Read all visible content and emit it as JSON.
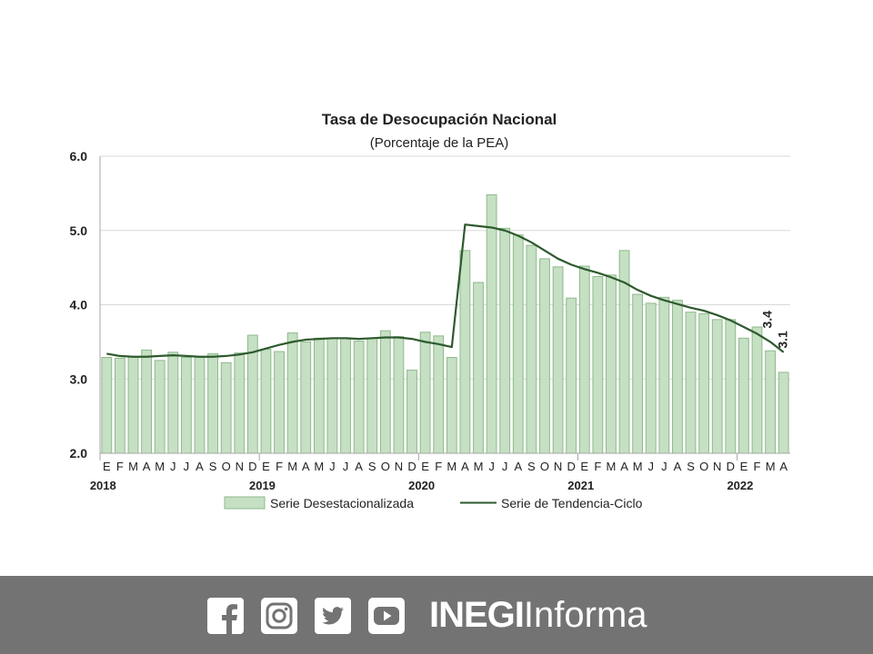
{
  "chart_data": {
    "type": "bar",
    "title": "Tasa de Desocupación Nacional",
    "subtitle": "(Porcentaje de la PEA)",
    "ylim": [
      2.0,
      6.0
    ],
    "yticks": [
      "2.0",
      "3.0",
      "4.0",
      "5.0",
      "6.0"
    ],
    "month_labels": [
      "E",
      "F",
      "M",
      "A",
      "M",
      "J",
      "J",
      "A",
      "S",
      "O",
      "N",
      "D",
      "E",
      "F",
      "M",
      "A",
      "M",
      "J",
      "J",
      "A",
      "S",
      "O",
      "N",
      "D",
      "E",
      "F",
      "M",
      "A",
      "M",
      "J",
      "J",
      "A",
      "S",
      "O",
      "N",
      "D",
      "E",
      "F",
      "M",
      "A",
      "M",
      "J",
      "J",
      "A",
      "S",
      "O",
      "N",
      "D",
      "E",
      "F",
      "M",
      "A"
    ],
    "year_labels": [
      {
        "label": "2018",
        "index": 0
      },
      {
        "label": "2019",
        "index": 12
      },
      {
        "label": "2020",
        "index": 24
      },
      {
        "label": "2021",
        "index": 36
      },
      {
        "label": "2022",
        "index": 48
      }
    ],
    "grid": true,
    "legend_position": "bottom",
    "series": [
      {
        "name": "Serie Desestacionalizada",
        "kind": "bar",
        "color": "#c5e0c3",
        "edge_color": "#8fb98c",
        "values": [
          3.29,
          3.28,
          3.3,
          3.39,
          3.25,
          3.36,
          3.29,
          3.29,
          3.34,
          3.22,
          3.35,
          3.59,
          3.4,
          3.37,
          3.62,
          3.5,
          3.55,
          3.55,
          3.55,
          3.51,
          3.55,
          3.65,
          3.57,
          3.12,
          3.63,
          3.58,
          3.29,
          4.73,
          4.3,
          5.48,
          5.03,
          4.94,
          4.8,
          4.62,
          4.51,
          4.09,
          4.52,
          4.38,
          4.4,
          4.73,
          4.14,
          4.02,
          4.1,
          4.06,
          3.9,
          3.88,
          3.8,
          3.8,
          3.55,
          3.7,
          3.38,
          3.09
        ]
      },
      {
        "name": "Serie de Tendencia-Ciclo",
        "kind": "line",
        "color": "#2e5a2e",
        "values": [
          3.34,
          3.31,
          3.3,
          3.3,
          3.31,
          3.32,
          3.31,
          3.3,
          3.3,
          3.31,
          3.33,
          3.36,
          3.41,
          3.46,
          3.5,
          3.53,
          3.54,
          3.55,
          3.55,
          3.54,
          3.55,
          3.56,
          3.56,
          3.54,
          3.5,
          3.47,
          3.43,
          5.08,
          5.06,
          5.04,
          5.0,
          4.93,
          4.84,
          4.73,
          4.62,
          4.54,
          4.48,
          4.43,
          4.37,
          4.3,
          4.2,
          4.12,
          4.06,
          4.01,
          3.96,
          3.92,
          3.86,
          3.79,
          3.7,
          3.61,
          3.5,
          3.36
        ]
      }
    ],
    "annotations": [
      {
        "text": "3.4",
        "series": 1,
        "index": 51
      },
      {
        "text": "3.1",
        "series": 0,
        "index": 51
      }
    ]
  },
  "footer": {
    "icons": [
      "facebook-icon",
      "instagram-icon",
      "twitter-icon",
      "youtube-icon"
    ],
    "brand_bold": "INEGI",
    "brand_light": "Informa",
    "background": "#737373"
  }
}
